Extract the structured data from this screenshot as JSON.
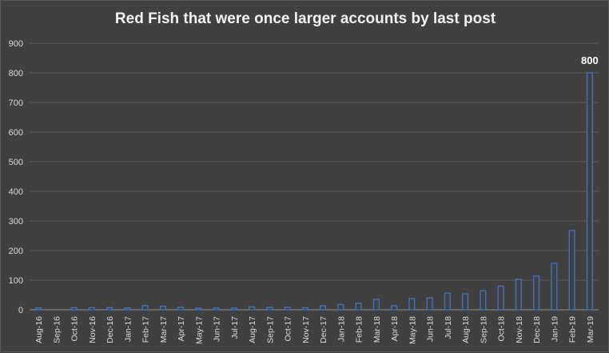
{
  "chart_data": {
    "type": "bar",
    "title": "Red Fish that were once larger accounts by last post",
    "xlabel": "",
    "ylabel": "",
    "ylim": [
      0,
      900
    ],
    "yticks": [
      0,
      100,
      200,
      300,
      400,
      500,
      600,
      700,
      800,
      900
    ],
    "grid": true,
    "categories": [
      "Aug-16",
      "Sep-16",
      "Oct-16",
      "Nov-16",
      "Dec-16",
      "Jan-17",
      "Feb-17",
      "Mar-17",
      "Apr-17",
      "May-17",
      "Jun-17",
      "Jul-17",
      "Aug-17",
      "Sep-17",
      "Oct-17",
      "Nov-17",
      "Dec-17",
      "Jan-18",
      "Feb-18",
      "Mar-18",
      "Apr-18",
      "May-18",
      "Jun-18",
      "Jul-18",
      "Aug-18",
      "Sep-18",
      "Oct-18",
      "Nov-18",
      "Dec-18",
      "Jan-19",
      "Feb-19",
      "Mar-19"
    ],
    "values": [
      6,
      0,
      7,
      7,
      7,
      6,
      14,
      12,
      8,
      5,
      6,
      6,
      10,
      8,
      8,
      7,
      13,
      18,
      22,
      35,
      14,
      38,
      40,
      56,
      54,
      64,
      80,
      103,
      114,
      157,
      268,
      800
    ],
    "data_labels": [
      {
        "category": "Mar-19",
        "text": "800"
      }
    ],
    "bar_color": "#4472c4",
    "bar_fill": "#404040"
  }
}
